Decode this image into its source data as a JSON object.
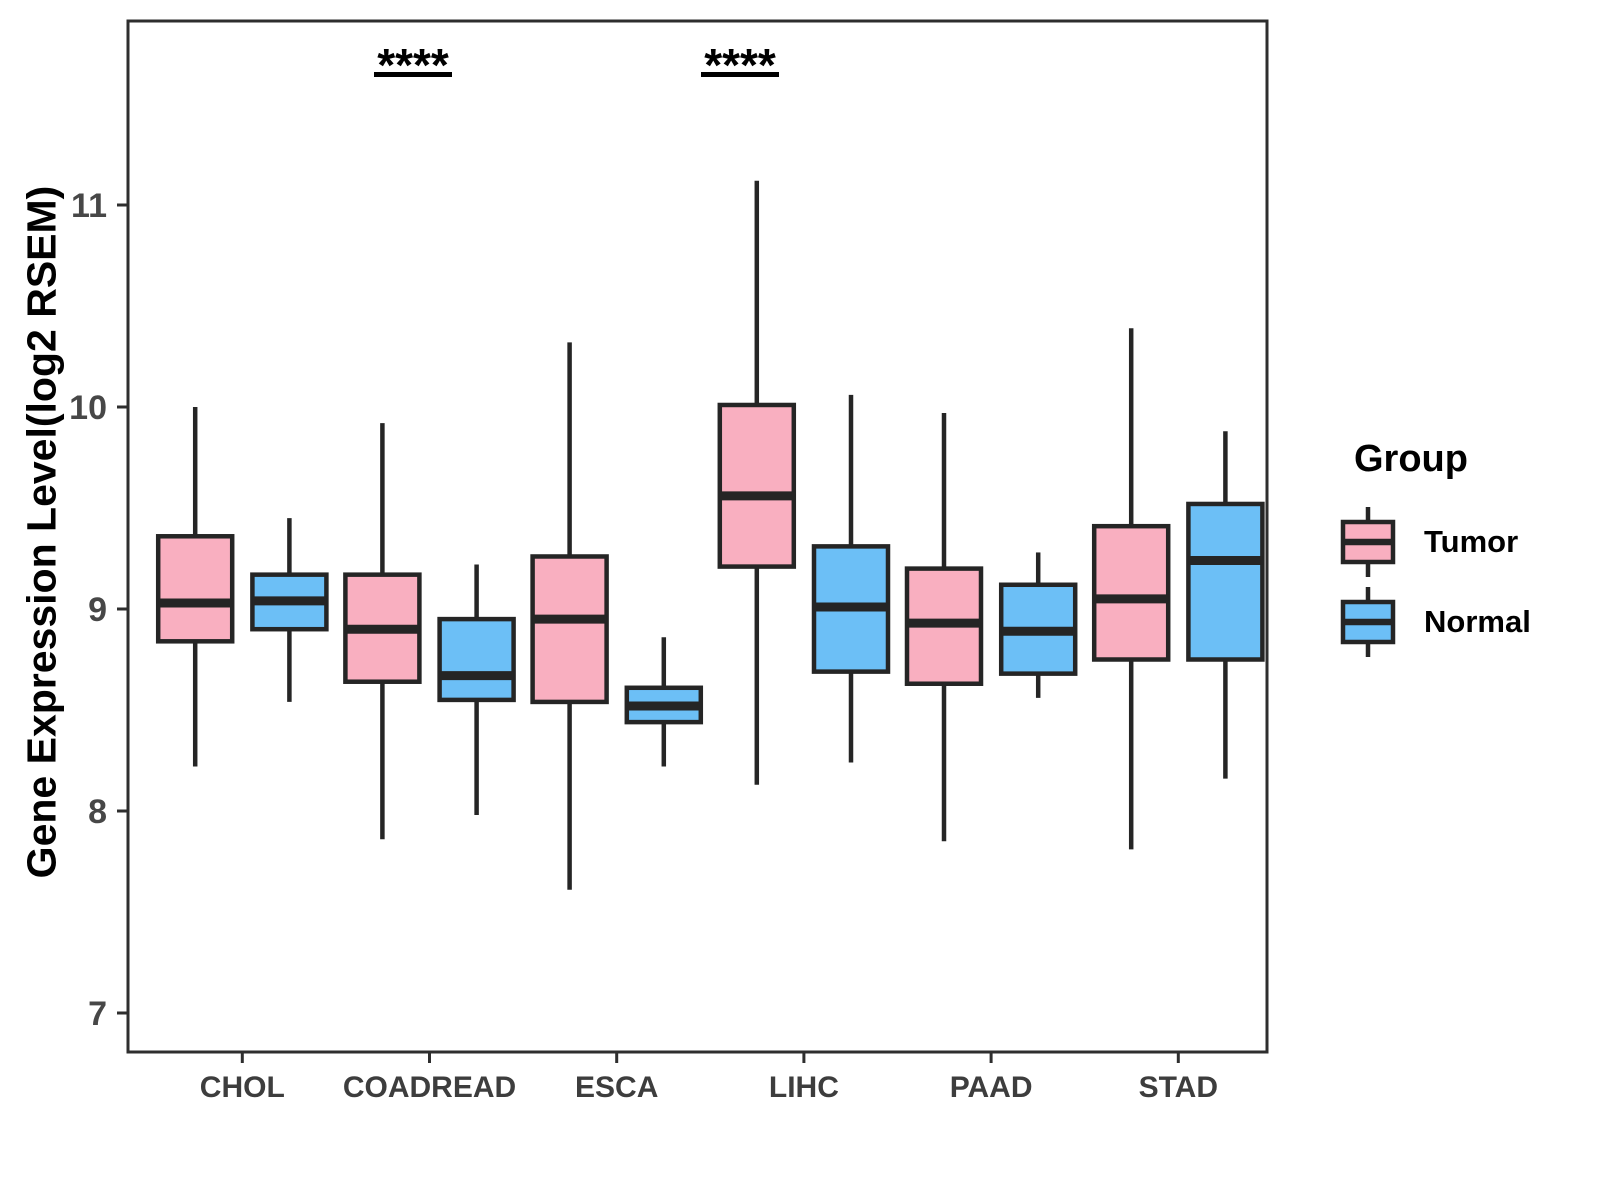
{
  "chart_data": {
    "type": "boxplot",
    "title": "",
    "xlabel": "",
    "ylabel": "Gene Expression Level(log2 RSEM)",
    "yticks": [
      "7",
      "8",
      "9",
      "10",
      "11"
    ],
    "ylim": [
      6.8,
      11.9
    ],
    "grid": false,
    "categories": [
      "CHOL",
      "COADREAD",
      "ESCA",
      "LIHC",
      "PAAD",
      "STAD"
    ],
    "groups": [
      {
        "name": "Tumor",
        "color": "#F9AFC0"
      },
      {
        "name": "Normal",
        "color": "#6CBFF6"
      }
    ],
    "boxes": [
      {
        "category": "CHOL",
        "group": "Tumor",
        "low": 8.22,
        "q1": 8.84,
        "median": 9.03,
        "q3": 9.36,
        "high": 10.0
      },
      {
        "category": "CHOL",
        "group": "Normal",
        "low": 8.54,
        "q1": 8.9,
        "median": 9.04,
        "q3": 9.17,
        "high": 9.45
      },
      {
        "category": "COADREAD",
        "group": "Tumor",
        "low": 7.86,
        "q1": 8.64,
        "median": 8.9,
        "q3": 9.17,
        "high": 9.92
      },
      {
        "category": "COADREAD",
        "group": "Normal",
        "low": 7.98,
        "q1": 8.55,
        "median": 8.67,
        "q3": 8.95,
        "high": 9.22
      },
      {
        "category": "ESCA",
        "group": "Tumor",
        "low": 7.61,
        "q1": 8.54,
        "median": 8.95,
        "q3": 9.26,
        "high": 10.32
      },
      {
        "category": "ESCA",
        "group": "Normal",
        "low": 8.22,
        "q1": 8.44,
        "median": 8.52,
        "q3": 8.61,
        "high": 8.86
      },
      {
        "category": "LIHC",
        "group": "Tumor",
        "low": 8.13,
        "q1": 9.21,
        "median": 9.56,
        "q3": 10.01,
        "high": 11.12
      },
      {
        "category": "LIHC",
        "group": "Normal",
        "low": 8.24,
        "q1": 8.69,
        "median": 9.01,
        "q3": 9.31,
        "high": 10.06
      },
      {
        "category": "PAAD",
        "group": "Tumor",
        "low": 7.85,
        "q1": 8.63,
        "median": 8.93,
        "q3": 9.2,
        "high": 9.97
      },
      {
        "category": "PAAD",
        "group": "Normal",
        "low": 8.56,
        "q1": 8.68,
        "median": 8.89,
        "q3": 9.12,
        "high": 9.28
      },
      {
        "category": "STAD",
        "group": "Tumor",
        "low": 7.81,
        "q1": 8.75,
        "median": 9.05,
        "q3": 9.41,
        "high": 10.39
      },
      {
        "category": "STAD",
        "group": "Normal",
        "low": 8.16,
        "q1": 8.75,
        "median": 9.24,
        "q3": 9.52,
        "high": 9.88
      }
    ],
    "annotations": [
      {
        "category": "COADREAD",
        "label": "****"
      },
      {
        "category": "LIHC",
        "label": "****"
      }
    ],
    "legend": {
      "title": "Group",
      "position": "right"
    }
  },
  "colors": {
    "box_outline": "#252525",
    "panel_border": "#2e2e2e",
    "annotation": "#000000"
  }
}
